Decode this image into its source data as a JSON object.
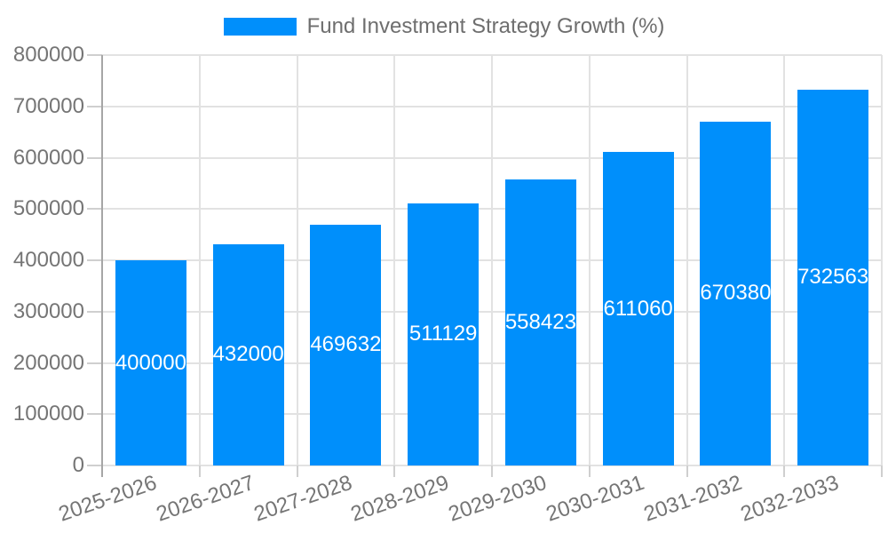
{
  "chart_data": {
    "type": "bar",
    "title": "Fund Investment Strategy Growth (%)",
    "categories": [
      "2025-2026",
      "2026-2027",
      "2027-2028",
      "2028-2029",
      "2029-2030",
      "2030-2031",
      "2031-2032",
      "2032-2033"
    ],
    "values": [
      400000,
      432000,
      469632,
      511129,
      558423,
      611060,
      670380,
      732563
    ],
    "value_labels": [
      "400000",
      "432000",
      "469632",
      "511129",
      "558423",
      "611060",
      "670380",
      "732563"
    ],
    "xlabel": "",
    "ylabel": "",
    "ylim": [
      0,
      800000
    ],
    "ytick_step": 100000,
    "ytick_labels": [
      "0",
      "100000",
      "200000",
      "300000",
      "400000",
      "500000",
      "600000",
      "700000",
      "800000"
    ],
    "grid": "on",
    "legend_position": "top-center",
    "x_label_rotation_deg": -19,
    "bar_color": "#008FFB",
    "value_label_color": "#ffffff",
    "axis_label_color": "#757575",
    "legend_text_color": "#6e6e6e",
    "gridline_color": "#e2e2e2",
    "axis_line_color": "#a6a6a6",
    "tick_color": "#cfcfcf",
    "background_color": "#ffffff"
  }
}
